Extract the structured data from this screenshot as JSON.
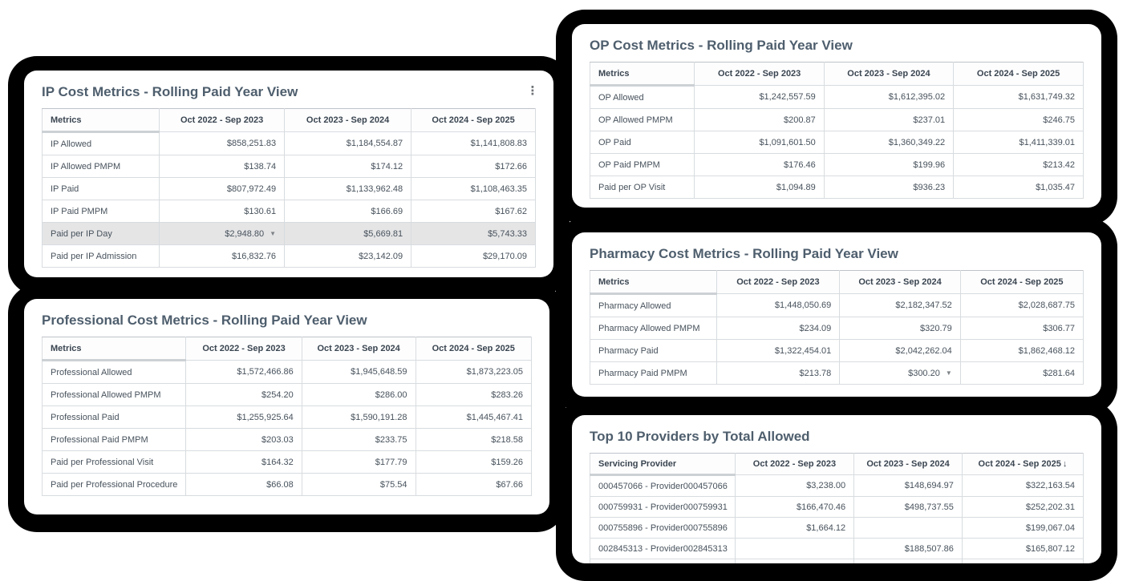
{
  "colors": {
    "card_shadow": "#000000",
    "title_text": "#4e5e6d",
    "header_text": "#3a4550",
    "cell_text": "#47525c",
    "grid_border": "#d8dcdf",
    "highlight_row_bg": "#e5e5e6",
    "indicator_gray": "#7e8387"
  },
  "icons": {
    "kebab_menu": "⋮",
    "down_triangle": "▼"
  },
  "cards": {
    "ip": {
      "title": "IP Cost Metrics - Rolling Paid Year View",
      "columns": [
        {
          "label": "Metrics"
        },
        {
          "label": "Oct 2022 - Sep 2023"
        },
        {
          "label": "Oct 2023 - Sep 2024"
        },
        {
          "label": "Oct 2024 - Sep 2025"
        }
      ],
      "rows": [
        {
          "label": "IP Allowed",
          "values": [
            "$858,251.83",
            "$1,184,554.87",
            "$1,141,808.83"
          ]
        },
        {
          "label": "IP Allowed PMPM",
          "values": [
            "$138.74",
            "$174.12",
            "$172.66"
          ]
        },
        {
          "label": "IP Paid",
          "values": [
            "$807,972.49",
            "$1,133,962.48",
            "$1,108,463.35"
          ]
        },
        {
          "label": "IP Paid PMPM",
          "values": [
            "$130.61",
            "$166.69",
            "$167.62"
          ]
        },
        {
          "label": "Paid per IP Day",
          "values": [
            "$2,948.80",
            "$5,669.81",
            "$5,743.33"
          ],
          "highlighted": true,
          "indicator_col": 0
        },
        {
          "label": "Paid per IP Admission",
          "values": [
            "$16,832.76",
            "$23,142.09",
            "$29,170.09"
          ]
        }
      ]
    },
    "professional": {
      "title": "Professional Cost Metrics - Rolling Paid Year View",
      "columns": [
        {
          "label": "Metrics"
        },
        {
          "label": "Oct 2022 - Sep 2023"
        },
        {
          "label": "Oct 2023 - Sep 2024"
        },
        {
          "label": "Oct 2024 - Sep 2025"
        }
      ],
      "rows": [
        {
          "label": "Professional Allowed",
          "values": [
            "$1,572,466.86",
            "$1,945,648.59",
            "$1,873,223.05"
          ]
        },
        {
          "label": "Professional Allowed PMPM",
          "values": [
            "$254.20",
            "$286.00",
            "$283.26"
          ]
        },
        {
          "label": "Professional Paid",
          "values": [
            "$1,255,925.64",
            "$1,590,191.28",
            "$1,445,467.41"
          ]
        },
        {
          "label": "Professional Paid PMPM",
          "values": [
            "$203.03",
            "$233.75",
            "$218.58"
          ]
        },
        {
          "label": "Paid per Professional Visit",
          "values": [
            "$164.32",
            "$177.79",
            "$159.26"
          ]
        },
        {
          "label": "Paid per Professional Procedure",
          "values": [
            "$66.08",
            "$75.54",
            "$67.66"
          ]
        }
      ]
    },
    "op": {
      "title": "OP Cost Metrics - Rolling Paid Year View",
      "columns": [
        {
          "label": "Metrics"
        },
        {
          "label": "Oct 2022 - Sep 2023"
        },
        {
          "label": "Oct 2023 - Sep 2024"
        },
        {
          "label": "Oct 2024 - Sep 2025"
        }
      ],
      "rows": [
        {
          "label": "OP Allowed",
          "values": [
            "$1,242,557.59",
            "$1,612,395.02",
            "$1,631,749.32"
          ]
        },
        {
          "label": "OP Allowed PMPM",
          "values": [
            "$200.87",
            "$237.01",
            "$246.75"
          ]
        },
        {
          "label": "OP Paid",
          "values": [
            "$1,091,601.50",
            "$1,360,349.22",
            "$1,411,339.01"
          ]
        },
        {
          "label": "OP Paid PMPM",
          "values": [
            "$176.46",
            "$199.96",
            "$213.42"
          ]
        },
        {
          "label": "Paid per OP Visit",
          "values": [
            "$1,094.89",
            "$936.23",
            "$1,035.47"
          ]
        }
      ]
    },
    "pharmacy": {
      "title": "Pharmacy Cost Metrics - Rolling Paid Year View",
      "columns": [
        {
          "label": "Metrics"
        },
        {
          "label": "Oct 2022 - Sep 2023"
        },
        {
          "label": "Oct 2023 - Sep 2024"
        },
        {
          "label": "Oct 2024 - Sep 2025"
        }
      ],
      "rows": [
        {
          "label": "Pharmacy Allowed",
          "values": [
            "$1,448,050.69",
            "$2,182,347.52",
            "$2,028,687.75"
          ]
        },
        {
          "label": "Pharmacy Allowed PMPM",
          "values": [
            "$234.09",
            "$320.79",
            "$306.77"
          ]
        },
        {
          "label": "Pharmacy Paid",
          "values": [
            "$1,322,454.01",
            "$2,042,262.04",
            "$1,862,468.12"
          ]
        },
        {
          "label": "Pharmacy Paid PMPM",
          "values": [
            "$213.78",
            "$300.20",
            "$281.64"
          ],
          "indicator_col": 1
        }
      ]
    },
    "top10": {
      "title": "Top 10 Providers by Total Allowed",
      "columns": [
        {
          "label": "Servicing Provider"
        },
        {
          "label": "Oct 2022 - Sep 2023"
        },
        {
          "label": "Oct 2023 - Sep 2024"
        },
        {
          "label": "Oct 2024 - Sep 2025",
          "sort": "↓"
        }
      ],
      "rows": [
        {
          "label": "000457066 - Provider000457066",
          "values": [
            "$3,238.00",
            "$148,694.97",
            "$322,163.54"
          ]
        },
        {
          "label": "000759931 - Provider000759931",
          "values": [
            "$166,470.46",
            "$498,737.55",
            "$252,202.31"
          ]
        },
        {
          "label": "000755896 - Provider000755896",
          "values": [
            "$1,664.12",
            "",
            "$199,067.04"
          ]
        },
        {
          "label": "002845313 - Provider002845313",
          "values": [
            "",
            "$188,507.86",
            "$165,807.12"
          ]
        }
      ]
    }
  }
}
